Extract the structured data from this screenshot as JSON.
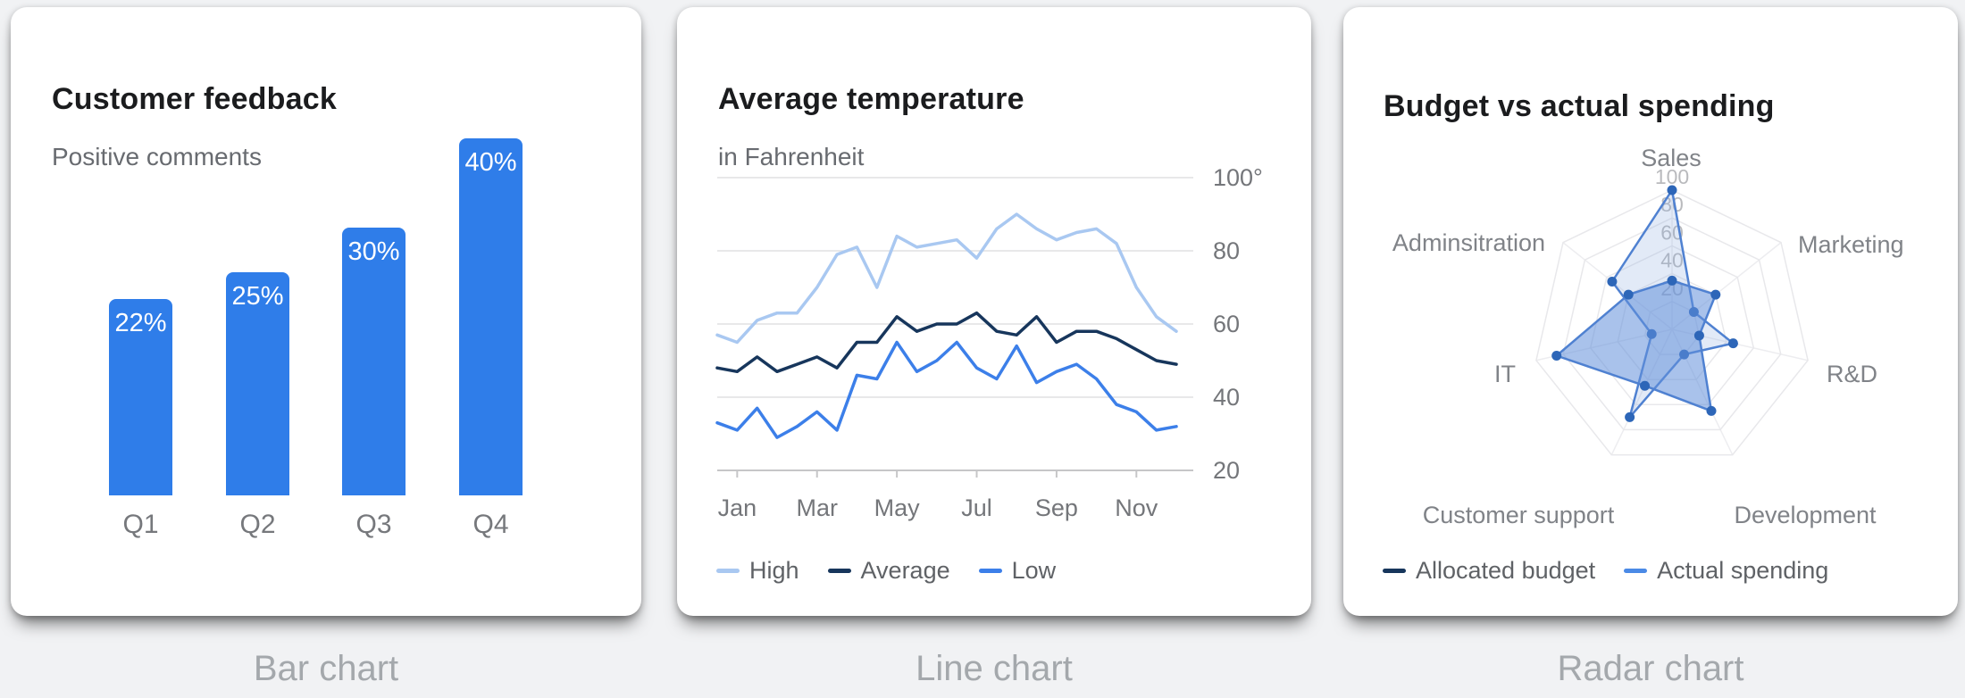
{
  "page": {
    "captions": [
      "Bar chart",
      "Line chart",
      "Radar chart"
    ]
  },
  "colors": {
    "bar_blue": "#2f7de9",
    "line_high": "#a9c8f1",
    "line_average": "#17365c",
    "line_low": "#3c7fe9",
    "radar_stroke": "#4f81d1",
    "radar_dot": "#2d66b8",
    "radar_allocated_fill": "rgba(140,172,224,0.25)",
    "radar_actual_fill": "rgba(98,143,219,0.55)",
    "legend_navy": "#17365c",
    "legend_blue": "#4b8ae6"
  },
  "chart_data": [
    {
      "type": "bar",
      "title": "Customer feedback",
      "subtitle": "Positive comments",
      "categories": [
        "Q1",
        "Q2",
        "Q3",
        "Q4"
      ],
      "values": [
        22,
        25,
        30,
        40
      ],
      "value_labels": [
        "22%",
        "25%",
        "30%",
        "40%"
      ],
      "bar_color": "#2f7de9",
      "ylim": [
        0,
        55
      ],
      "grid": false,
      "legend": "none"
    },
    {
      "type": "line",
      "title": "Average temperature",
      "subtitle": "in Fahrenheit",
      "x_tick_labels": [
        "Jan",
        "Mar",
        "May",
        "Jul",
        "Sep",
        "Nov"
      ],
      "y_tick_labels": [
        "100°",
        "80",
        "60",
        "40",
        "20"
      ],
      "y_tick_values": [
        100,
        80,
        60,
        40,
        20
      ],
      "ylim": [
        20,
        100
      ],
      "points_per_series": 24,
      "x_span_months": "Jan–Dec, semi-monthly points",
      "grid": true,
      "legend_position": "bottom-left",
      "series": [
        {
          "name": "High",
          "color": "#a9c8f1",
          "values": [
            57,
            55,
            61,
            63,
            63,
            70,
            79,
            81,
            70,
            84,
            81,
            82,
            83,
            78,
            86,
            90,
            86,
            83,
            85,
            86,
            82,
            70,
            62,
            58
          ]
        },
        {
          "name": "Average",
          "color": "#17365c",
          "values": [
            48,
            47,
            51,
            47,
            49,
            51,
            48,
            55,
            55,
            62,
            58,
            60,
            60,
            63,
            58,
            57,
            62,
            55,
            58,
            58,
            56,
            53,
            50,
            49
          ]
        },
        {
          "name": "Low",
          "color": "#3c7fe9",
          "values": [
            33,
            31,
            37,
            29,
            32,
            36,
            31,
            46,
            45,
            55,
            47,
            50,
            55,
            48,
            45,
            54,
            44,
            47,
            49,
            45,
            38,
            36,
            31,
            32
          ]
        }
      ]
    },
    {
      "type": "radar",
      "title": "Budget vs actual spending",
      "categories": [
        "Sales",
        "Marketing",
        "R&D",
        "Development",
        "Customer support",
        "IT",
        "Adminsitration"
      ],
      "ring_values": [
        20,
        40,
        60,
        80,
        100
      ],
      "ring_labels_top_down": [
        "100",
        "80",
        "60",
        "40",
        "20"
      ],
      "rlim": [
        0,
        100
      ],
      "legend_position": "bottom-left",
      "series": [
        {
          "name": "Allocated budget",
          "swatch_color": "#17365c",
          "values": [
            100,
            20,
            45,
            20,
            70,
            15,
            55
          ]
        },
        {
          "name": "Actual spending",
          "swatch_color": "#4b8ae6",
          "values": [
            35,
            40,
            20,
            65,
            45,
            85,
            40
          ]
        }
      ]
    }
  ]
}
